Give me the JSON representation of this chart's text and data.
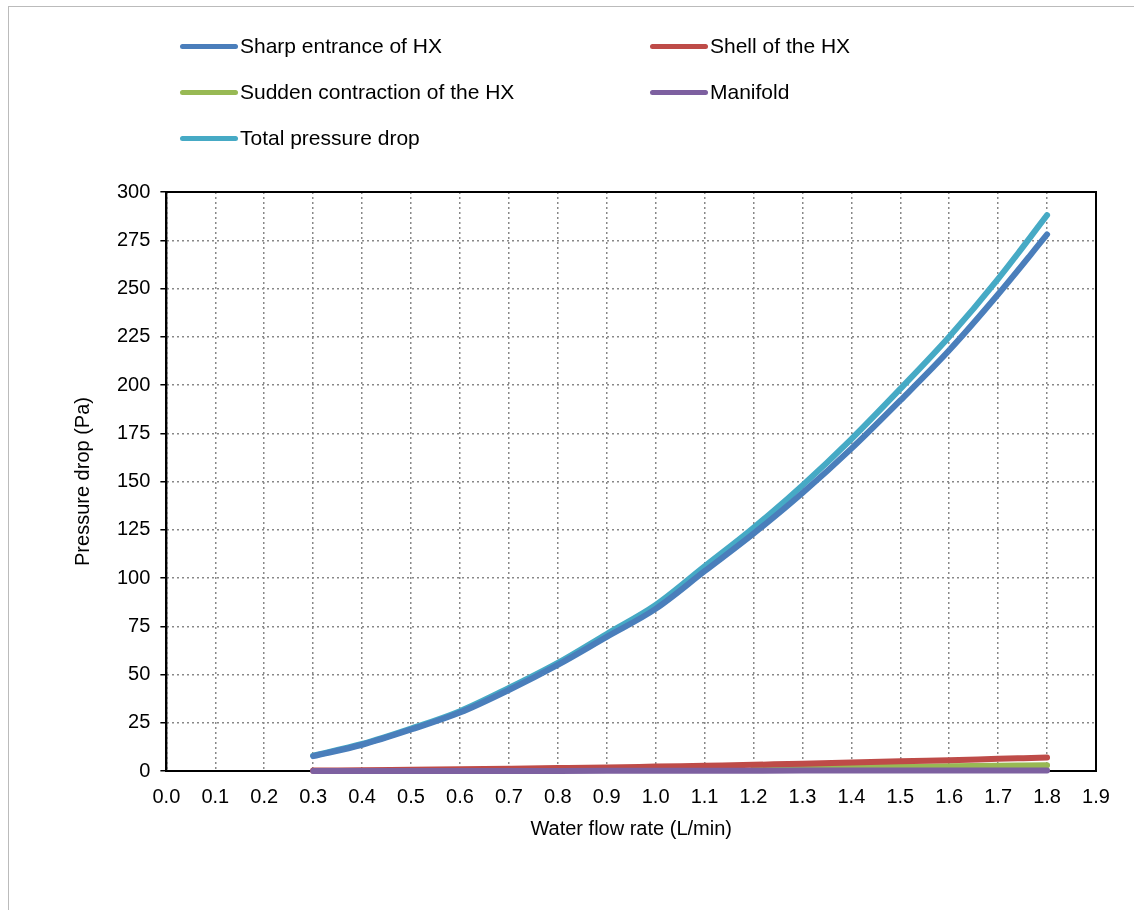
{
  "chart_data": {
    "type": "line",
    "xlabel": "Water flow rate (L/min)",
    "ylabel": "Pressure drop (Pa)",
    "xlim": [
      0,
      1.9
    ],
    "xticks": [
      {
        "value": 0,
        "label": "0.0"
      },
      {
        "value": 0.1,
        "label": "0.1"
      },
      {
        "value": 0.2,
        "label": "0.2"
      },
      {
        "value": 0.3,
        "label": "0.3"
      },
      {
        "value": 0.4,
        "label": "0.4"
      },
      {
        "value": 0.5,
        "label": "0.5"
      },
      {
        "value": 0.6,
        "label": "0.6"
      },
      {
        "value": 0.7,
        "label": "0.7"
      },
      {
        "value": 0.8,
        "label": "0.8"
      },
      {
        "value": 0.9,
        "label": "0.9"
      },
      {
        "value": 1,
        "label": "1.0"
      },
      {
        "value": 1.1,
        "label": "1.1"
      },
      {
        "value": 1.2,
        "label": "1.2"
      },
      {
        "value": 1.3,
        "label": "1.3"
      },
      {
        "value": 1.4,
        "label": "1.4"
      },
      {
        "value": 1.5,
        "label": "1.5"
      },
      {
        "value": 1.6,
        "label": "1.6"
      },
      {
        "value": 1.7,
        "label": "1.7"
      },
      {
        "value": 1.8,
        "label": "1.8"
      },
      {
        "value": 1.9,
        "label": "1.9"
      }
    ],
    "ylim": [
      0,
      300
    ],
    "yticks": [
      0,
      25,
      50,
      75,
      100,
      125,
      150,
      175,
      200,
      225,
      250,
      275,
      300
    ],
    "grid": true,
    "legend": "top",
    "marker": "none",
    "line_style": "solid",
    "x": [
      0.3,
      0.4,
      0.5,
      0.6,
      0.7,
      0.8,
      0.9,
      1.0,
      1.1,
      1.2,
      1.3,
      1.4,
      1.5,
      1.6,
      1.7,
      1.8
    ],
    "series": [
      {
        "name": "Sharp entrance of HX",
        "color": "#4a7ebb",
        "values": [
          7.7,
          13.6,
          21.5,
          30.3,
          42,
          55,
          69.5,
          84,
          103.5,
          123,
          144,
          167,
          192,
          218,
          247,
          278
        ]
      },
      {
        "name": "Shell of the HX",
        "color": "#be4b48",
        "values": [
          0.2,
          0.4,
          0.6,
          0.9,
          1.2,
          1.5,
          1.8,
          2.3,
          2.7,
          3.2,
          3.8,
          4.4,
          5,
          5.6,
          6.3,
          7
        ]
      },
      {
        "name": "Sudden contraction of the HX",
        "color": "#98b954",
        "values": [
          null,
          null,
          null,
          null,
          null,
          null,
          null,
          null,
          null,
          1.4,
          1.6,
          1.9,
          2.1,
          2.4,
          2.7,
          3
        ]
      },
      {
        "name": "Manifold",
        "color": "#7d60a0",
        "values": [
          0,
          0,
          0,
          0,
          0,
          0,
          0.1,
          0.1,
          0.1,
          0.1,
          0.2,
          0.2,
          0.2,
          0.2,
          0.3,
          0.3
        ]
      },
      {
        "name": "Total pressure drop",
        "color": "#46aac5",
        "values": [
          8,
          14,
          22,
          31,
          43,
          56,
          71,
          86,
          106,
          126,
          148,
          172,
          198,
          225,
          255,
          288
        ]
      }
    ]
  }
}
